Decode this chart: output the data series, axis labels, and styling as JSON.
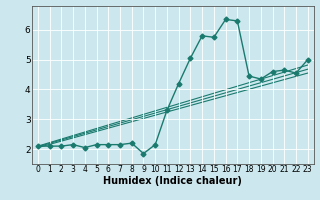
{
  "xlabel": "Humidex (Indice chaleur)",
  "background_color": "#cce8ee",
  "line_color": "#1a7a6e",
  "grid_color": "#ffffff",
  "xlim": [
    -0.5,
    23.5
  ],
  "ylim": [
    1.5,
    6.8
  ],
  "yticks": [
    2,
    3,
    4,
    5,
    6
  ],
  "xticks": [
    0,
    1,
    2,
    3,
    4,
    5,
    6,
    7,
    8,
    9,
    10,
    11,
    12,
    13,
    14,
    15,
    16,
    17,
    18,
    19,
    20,
    21,
    22,
    23
  ],
  "main_series": {
    "x": [
      0,
      1,
      2,
      3,
      4,
      5,
      6,
      7,
      8,
      9,
      10,
      11,
      12,
      13,
      14,
      15,
      16,
      17,
      18,
      19,
      20,
      21,
      22,
      23
    ],
    "y": [
      2.1,
      2.1,
      2.1,
      2.15,
      2.05,
      2.15,
      2.15,
      2.15,
      2.2,
      1.85,
      2.15,
      3.3,
      4.2,
      5.05,
      5.8,
      5.75,
      6.35,
      6.3,
      4.45,
      4.35,
      4.6,
      4.65,
      4.55,
      5.0
    ]
  },
  "trend_lines": [
    {
      "x": [
        0,
        23
      ],
      "y": [
        2.05,
        4.55
      ]
    },
    {
      "x": [
        0,
        23
      ],
      "y": [
        2.08,
        4.68
      ]
    },
    {
      "x": [
        0,
        23
      ],
      "y": [
        2.1,
        4.82
      ]
    }
  ],
  "marker": "D",
  "markersize": 2.5,
  "linewidth": 1.0,
  "xlabel_fontsize": 7,
  "tick_fontsize": 5.5
}
